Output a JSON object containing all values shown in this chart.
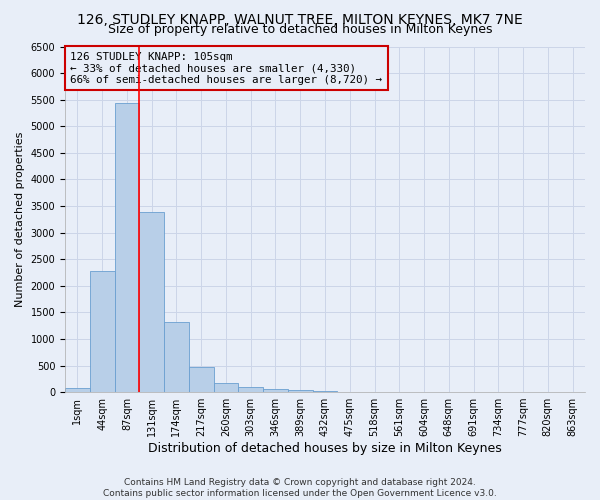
{
  "title": "126, STUDLEY KNAPP, WALNUT TREE, MILTON KEYNES, MK7 7NE",
  "subtitle": "Size of property relative to detached houses in Milton Keynes",
  "xlabel": "Distribution of detached houses by size in Milton Keynes",
  "ylabel": "Number of detached properties",
  "footer_line1": "Contains HM Land Registry data © Crown copyright and database right 2024.",
  "footer_line2": "Contains public sector information licensed under the Open Government Licence v3.0.",
  "annotation_title": "126 STUDLEY KNAPP: 105sqm",
  "annotation_line2": "← 33% of detached houses are smaller (4,330)",
  "annotation_line3": "66% of semi-detached houses are larger (8,720) →",
  "bar_color": "#b8cfe8",
  "bar_edge_color": "#6a9fd0",
  "property_line_x": 2.5,
  "annotation_box_color": "#cc0000",
  "categories": [
    "1sqm",
    "44sqm",
    "87sqm",
    "131sqm",
    "174sqm",
    "217sqm",
    "260sqm",
    "303sqm",
    "346sqm",
    "389sqm",
    "432sqm",
    "475sqm",
    "518sqm",
    "561sqm",
    "604sqm",
    "648sqm",
    "691sqm",
    "734sqm",
    "777sqm",
    "820sqm",
    "863sqm"
  ],
  "values": [
    70,
    2280,
    5430,
    3380,
    1310,
    480,
    165,
    90,
    55,
    30,
    15,
    10,
    5,
    3,
    2,
    1,
    1,
    0,
    0,
    0,
    0
  ],
  "ylim": [
    0,
    6500
  ],
  "yticks": [
    0,
    500,
    1000,
    1500,
    2000,
    2500,
    3000,
    3500,
    4000,
    4500,
    5000,
    5500,
    6000,
    6500
  ],
  "grid_color": "#ccd5e8",
  "bg_color": "#e8eef8",
  "title_fontsize": 10,
  "subtitle_fontsize": 9,
  "ylabel_fontsize": 8,
  "xlabel_fontsize": 9,
  "tick_fontsize": 7,
  "footer_fontsize": 6.5
}
